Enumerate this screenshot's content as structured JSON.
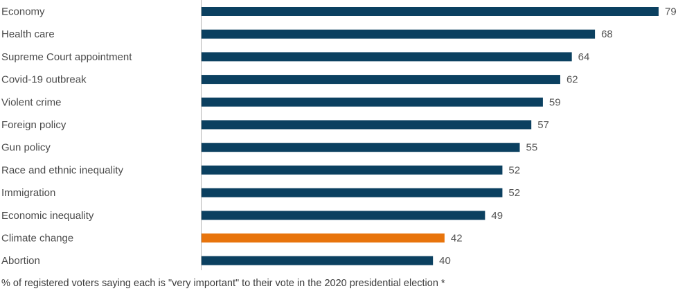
{
  "chart_data": {
    "type": "bar",
    "orientation": "horizontal",
    "categories": [
      "Economy",
      "Health care",
      "Supreme Court appointment",
      "Covid-19 outbreak",
      "Violent crime",
      "Foreign policy",
      "Gun policy",
      "Race and ethnic inequality",
      "Immigration",
      "Economic inequality",
      "Climate change",
      "Abortion"
    ],
    "values": [
      79,
      68,
      64,
      62,
      59,
      57,
      55,
      52,
      52,
      49,
      42,
      40
    ],
    "value_labels": [
      "79",
      "68",
      "64",
      "62",
      "59",
      "57",
      "55",
      "52",
      "52",
      "49",
      "42",
      "40"
    ],
    "highlight_category": "Climate change",
    "colors": {
      "bar": "#0b4060",
      "highlight": "#e8740c",
      "axis": "#b3b3b3"
    },
    "xlim": [
      0,
      79
    ],
    "grid": false,
    "legend": "none",
    "footnote": "% of registered voters saying each is \"very important\" to their vote in the 2020 presidential election *"
  }
}
